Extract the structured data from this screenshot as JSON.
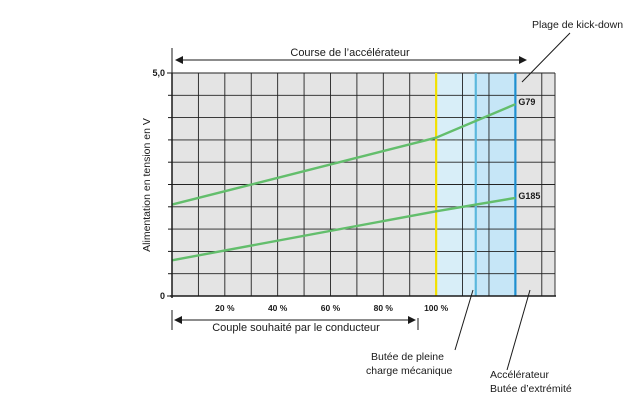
{
  "chart_data": {
    "type": "line",
    "top_arrow_label": "Course de l’accélérateur",
    "bottom_arrow_label": "Couple souhaité par le conducteur",
    "ylabel": "Alimentation en tension en V",
    "y_ticks": [
      "0",
      "5,0"
    ],
    "x_ticks": [
      "20 %",
      "40 %",
      "60 %",
      "80 %",
      "100 %"
    ],
    "xlim": [
      0,
      145
    ],
    "ylim": [
      0,
      5
    ],
    "series": [
      {
        "name": "G79",
        "x": [
          0,
          100,
          130
        ],
        "y": [
          2.05,
          3.55,
          4.3
        ],
        "color": "#63be6c"
      },
      {
        "name": "G185",
        "x": [
          0,
          100,
          130
        ],
        "y": [
          0.8,
          1.9,
          2.2
        ],
        "color": "#63be6c"
      }
    ],
    "markers": [
      {
        "x": 100,
        "color": "#f2e100"
      },
      {
        "x": 115,
        "color": "#5ab8dd"
      },
      {
        "x": 130,
        "color": "#1e8fd0"
      }
    ],
    "zones": [
      {
        "from": 100,
        "to": 115,
        "color": "#d8eef8"
      },
      {
        "from": 115,
        "to": 130,
        "color": "#c6e6f7"
      }
    ],
    "annotations": {
      "kickdown": "Plage de kick-down",
      "stop_line1": "Butée de pleine",
      "stop_line2": "charge mécanique",
      "pedal_line1": "Accélérateur",
      "pedal_line2": "Butée d’extrémité"
    },
    "grid": true
  }
}
